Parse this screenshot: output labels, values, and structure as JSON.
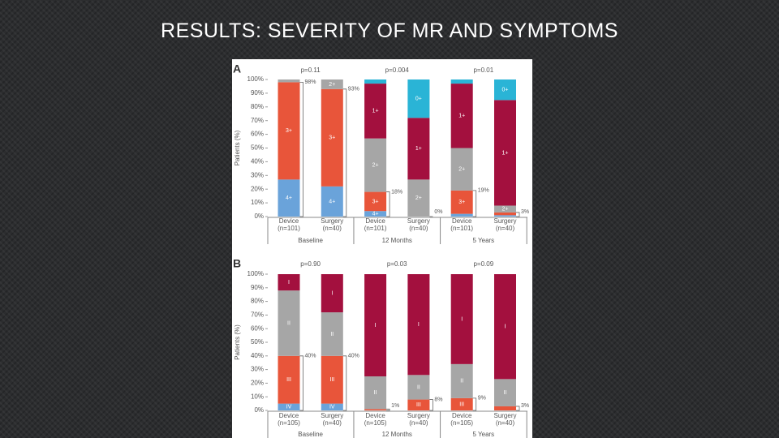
{
  "title": "RESULTS: SEVERITY OF MR AND SYMPTOMS",
  "chart_data": [
    {
      "type": "stacked_bar",
      "panel": "A",
      "ylabel": "Patients (%)",
      "categories": [
        "Device (n=101)",
        "Surgery (n=40)",
        "Device (n=101)",
        "Surgery (n=40)",
        "Device (n=101)",
        "Surgery (n=40)"
      ],
      "groups": [
        "Baseline",
        "12 Months",
        "5 Years"
      ],
      "group_annotations": [
        "p=0.11",
        "p=0.004",
        "p=0.01"
      ],
      "bracket_labels": [
        "98%",
        "93%",
        "18%",
        "0%",
        "19%",
        "3%"
      ],
      "ylim": [
        0,
        100
      ],
      "yticks": [
        {
          "value": 0,
          "label": "0%"
        },
        {
          "value": 10,
          "label": "10%"
        },
        {
          "value": 20,
          "label": "20%"
        },
        {
          "value": 30,
          "label": "30%"
        },
        {
          "value": 40,
          "label": "40%"
        },
        {
          "value": 50,
          "label": "50%"
        },
        {
          "value": 60,
          "label": "60%"
        },
        {
          "value": 70,
          "label": "70%"
        },
        {
          "value": 80,
          "label": "80%"
        },
        {
          "value": 90,
          "label": "90%"
        },
        {
          "value": 100,
          "label": "100%"
        }
      ],
      "series": [
        {
          "name": "4+",
          "color": "#6aa3da",
          "values": [
            27,
            22,
            4,
            0,
            2,
            1
          ]
        },
        {
          "name": "3+",
          "color": "#e8553a",
          "values": [
            71,
            71,
            14,
            0,
            17,
            2
          ]
        },
        {
          "name": "2+",
          "color": "#a6a6a6",
          "values": [
            2,
            7,
            39,
            27,
            31,
            5
          ]
        },
        {
          "name": "1+",
          "color": "#a3103e",
          "values": [
            0,
            0,
            40,
            45,
            47,
            77
          ]
        },
        {
          "name": "0+",
          "color": "#2ab4d6",
          "values": [
            0,
            0,
            3,
            28,
            3,
            15
          ]
        }
      ]
    },
    {
      "type": "stacked_bar",
      "panel": "B",
      "ylabel": "Patients (%)",
      "categories": [
        "Device (n=105)",
        "Surgery (n=40)",
        "Device (n=105)",
        "Surgery (n=40)",
        "Device (n=105)",
        "Surgery (n=40)"
      ],
      "groups": [
        "Baseline",
        "12 Months",
        "5 Years"
      ],
      "group_annotations": [
        "p=0.90",
        "p=0.03",
        "p=0.09"
      ],
      "bracket_labels": [
        "40%",
        "40%",
        "1%",
        "8%",
        "9%",
        "3%"
      ],
      "ylim": [
        0,
        100
      ],
      "yticks": [
        {
          "value": 0,
          "label": "0%"
        },
        {
          "value": 10,
          "label": "10%"
        },
        {
          "value": 20,
          "label": "20%"
        },
        {
          "value": 30,
          "label": "30%"
        },
        {
          "value": 40,
          "label": "40%"
        },
        {
          "value": 50,
          "label": "50%"
        },
        {
          "value": 60,
          "label": "60%"
        },
        {
          "value": 70,
          "label": "70%"
        },
        {
          "value": 80,
          "label": "80%"
        },
        {
          "value": 90,
          "label": "90%"
        },
        {
          "value": 100,
          "label": "100%"
        }
      ],
      "series": [
        {
          "name": "IV",
          "color": "#6aa3da",
          "values": [
            5,
            5,
            0,
            0,
            0,
            0
          ]
        },
        {
          "name": "III",
          "color": "#e8553a",
          "values": [
            35,
            35,
            1,
            8,
            9,
            3
          ]
        },
        {
          "name": "II",
          "color": "#a6a6a6",
          "values": [
            48,
            32,
            24,
            18,
            25,
            20
          ]
        },
        {
          "name": "I",
          "color": "#a3103e",
          "values": [
            12,
            28,
            75,
            74,
            66,
            77
          ]
        }
      ]
    }
  ]
}
